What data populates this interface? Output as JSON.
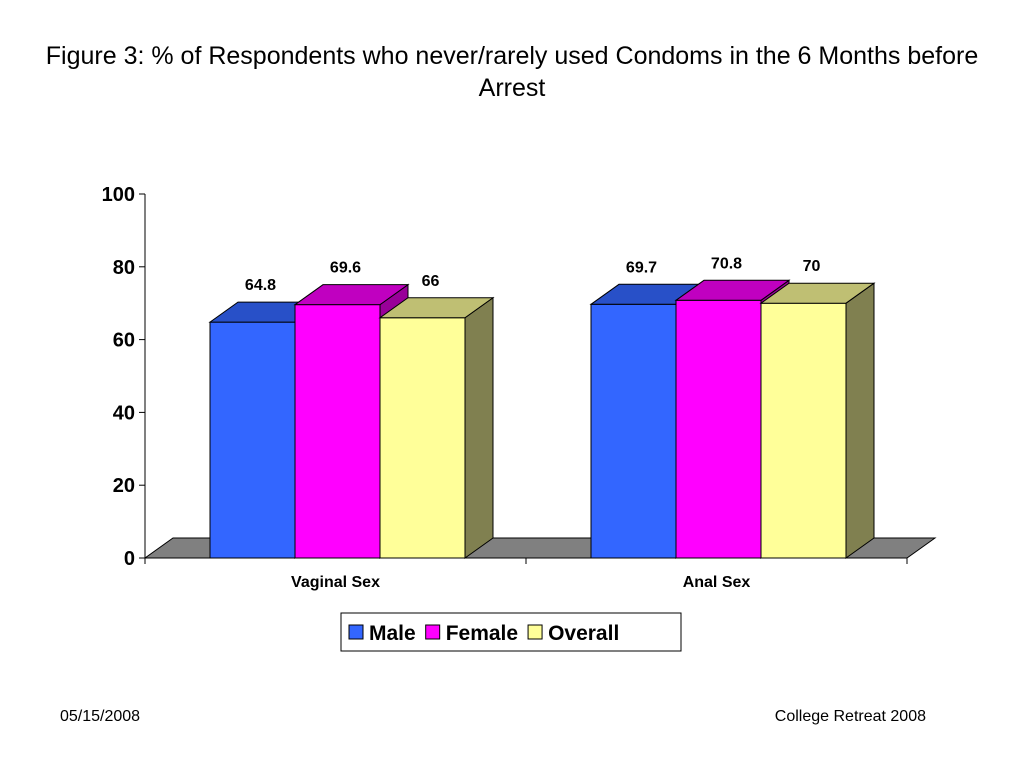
{
  "slide": {
    "title": "Figure 3: % of Respondents who never/rarely used Condoms in the 6 Months before Arrest",
    "footer_left": "05/15/2008",
    "footer_right": "College Retreat 2008"
  },
  "chart_data": {
    "type": "bar",
    "style": "3d-clustered",
    "title": "",
    "categories": [
      "Vaginal Sex",
      "Anal Sex"
    ],
    "series": [
      {
        "name": "Male",
        "values": [
          64.8,
          69.7
        ],
        "color": "#3366FF",
        "top_color": "#2850C8",
        "side_color": "#1F3DA0"
      },
      {
        "name": "Female",
        "values": [
          69.6,
          70.8
        ],
        "color": "#FF00FF",
        "top_color": "#C000C0",
        "side_color": "#990099"
      },
      {
        "name": "Overall",
        "values": [
          66,
          70
        ],
        "color": "#FFFF99",
        "top_color": "#BFBF73",
        "side_color": "#808050"
      }
    ],
    "data_labels": [
      [
        "64.8",
        "69.7"
      ],
      [
        "69.6",
        "70.8"
      ],
      [
        "66",
        "70"
      ]
    ],
    "ylim": [
      0,
      100
    ],
    "yticks": [
      0,
      20,
      40,
      60,
      80,
      100
    ],
    "xlabel": "",
    "ylabel": "",
    "grid": false,
    "legend": "bottom",
    "floor_color": "#808080"
  }
}
